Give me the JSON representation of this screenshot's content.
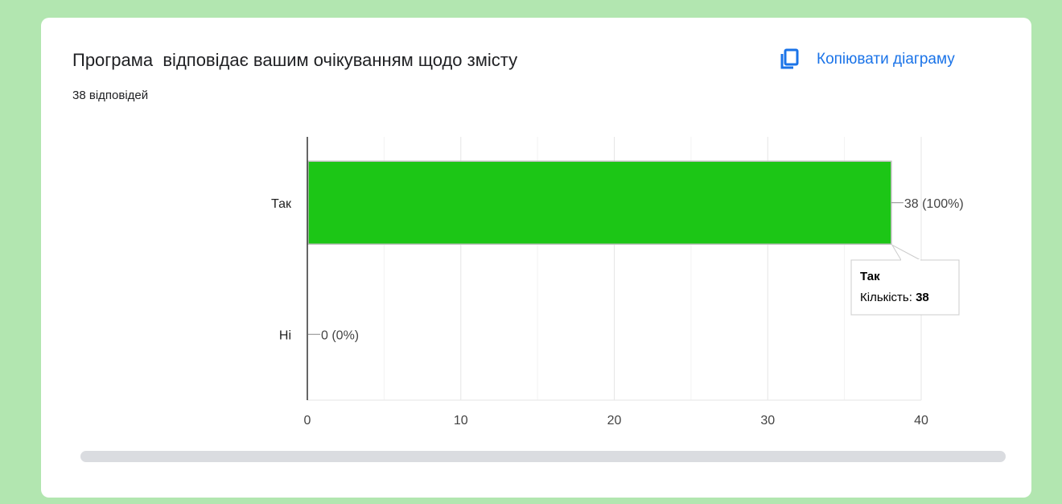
{
  "card": {
    "title": "Програма  відповідає вашим очікуванням щодо змісту",
    "subtitle": "38 відповідей",
    "copy_label": "Копіювати діаграму",
    "copy_icon": "copy-icon",
    "accent_color": "#1a73e8"
  },
  "tooltip": {
    "category": "Так",
    "label": "Кількість:",
    "value": "38"
  },
  "chart_data": {
    "type": "bar",
    "orientation": "horizontal",
    "categories": [
      "Так",
      "Ні"
    ],
    "values": [
      38,
      0
    ],
    "data_labels": [
      "38 (100%)",
      "0 (0%)"
    ],
    "xlim": [
      0,
      40
    ],
    "x_ticks": [
      "0",
      "10",
      "20",
      "30",
      "40"
    ],
    "bar_color": "#1cc616",
    "grid": true
  }
}
